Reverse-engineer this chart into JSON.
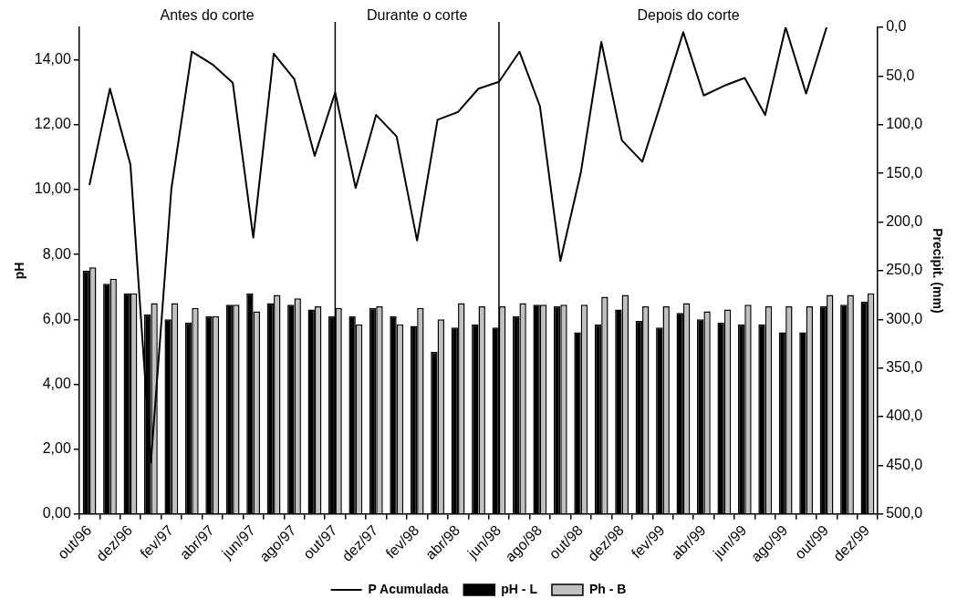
{
  "chart_data": {
    "type": "bar",
    "categories": [
      "out/96",
      null,
      "dez/96",
      null,
      "fev/97",
      null,
      "abr/97",
      null,
      "jun/97",
      null,
      "ago/97",
      null,
      "out/97",
      null,
      "dez/97",
      null,
      "fev/98",
      null,
      "abr/98",
      null,
      "jun/98",
      null,
      "ago/98",
      null,
      "out/98",
      null,
      "dez/98",
      null,
      "fev/99",
      null,
      "abr/99",
      null,
      "jun/99",
      null,
      "ago/99",
      null,
      "out/99",
      null,
      "dez/99"
    ],
    "series": [
      {
        "name": "pH - L",
        "color": "#000000",
        "values": [
          7.5,
          7.1,
          6.8,
          6.15,
          6.0,
          5.9,
          6.1,
          6.45,
          6.8,
          6.5,
          6.45,
          6.3,
          6.1,
          6.1,
          6.35,
          6.1,
          5.8,
          5.0,
          5.75,
          5.85,
          5.75,
          6.1,
          6.45,
          6.4,
          5.6,
          5.85,
          6.3,
          5.95,
          5.75,
          6.2,
          6.0,
          5.9,
          5.85,
          5.85,
          5.6,
          5.6,
          6.4,
          6.45,
          6.55
        ]
      },
      {
        "name": "Ph - B",
        "color": "#c0c0c0",
        "values": [
          7.6,
          7.25,
          6.8,
          6.5,
          6.5,
          6.35,
          6.1,
          6.45,
          6.25,
          6.75,
          6.65,
          6.4,
          6.35,
          5.85,
          6.4,
          5.85,
          6.35,
          6.0,
          6.5,
          6.4,
          6.4,
          6.5,
          6.45,
          6.45,
          6.45,
          6.7,
          6.75,
          6.4,
          6.4,
          6.5,
          6.25,
          6.3,
          6.45,
          6.4,
          6.4,
          6.4,
          6.75,
          6.75,
          6.8
        ]
      },
      {
        "name": "P Acumulada",
        "type": "line",
        "axis": "y2",
        "color": "#000000",
        "values": [
          162,
          63,
          141,
          447,
          166,
          25,
          38,
          57,
          216,
          27,
          53,
          132,
          67,
          165,
          90,
          112,
          219,
          95,
          87,
          63,
          56,
          25,
          81,
          240,
          149,
          15,
          116,
          138,
          72,
          5,
          70,
          60,
          52,
          90,
          0,
          68,
          0,
          null,
          null
        ]
      }
    ],
    "ylabel": "pH",
    "y2label": "Precipit. (mm)",
    "ylim": [
      0,
      15
    ],
    "yticks": [
      {
        "value": 0,
        "label": "0,00"
      },
      {
        "value": 2,
        "label": "2,00"
      },
      {
        "value": 4,
        "label": "4,00"
      },
      {
        "value": 6,
        "label": "6,00"
      },
      {
        "value": 8,
        "label": "8,00"
      },
      {
        "value": 10,
        "label": "10,00"
      },
      {
        "value": 12,
        "label": "12,00"
      },
      {
        "value": 14,
        "label": "14,00"
      }
    ],
    "y2lim": [
      500,
      0
    ],
    "y2ticks": [
      {
        "value": 0,
        "label": "0,0"
      },
      {
        "value": 50,
        "label": "50,0"
      },
      {
        "value": 100,
        "label": "100,0"
      },
      {
        "value": 150,
        "label": "150,0"
      },
      {
        "value": 200,
        "label": "200,0"
      },
      {
        "value": 250,
        "label": "250,0"
      },
      {
        "value": 300,
        "label": "300,0"
      },
      {
        "value": 350,
        "label": "350,0"
      },
      {
        "value": 400,
        "label": "400,0"
      },
      {
        "value": 450,
        "label": "450,0"
      },
      {
        "value": 500,
        "label": "500,0"
      }
    ],
    "ref_lines": [
      {
        "axis": "x",
        "value": "out/97",
        "color": "#000000"
      },
      {
        "axis": "x",
        "value": "jun/98",
        "color": "#000000"
      }
    ],
    "annotations": [
      "Antes do corte",
      "Durante o corte",
      "Depois do corte"
    ],
    "grid": false,
    "legend": "bottom",
    "marker": "none"
  }
}
